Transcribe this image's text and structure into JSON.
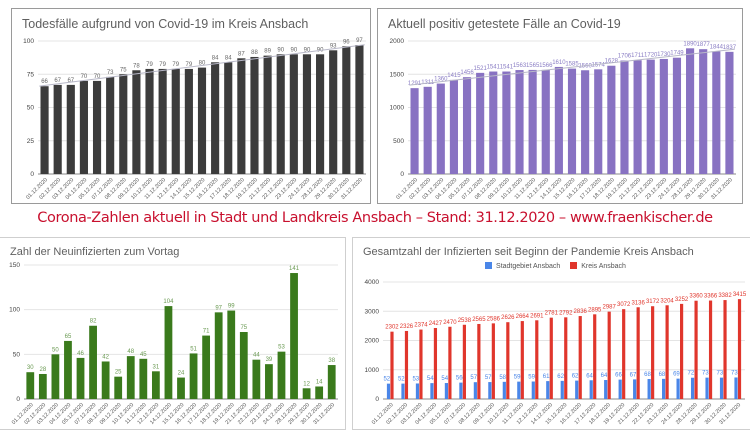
{
  "banner": "Corona-Zahlen aktuell in Stadt und Landkreis Ansbach – Stand: 31.12.2020 – www.fraenkischer.de",
  "chart_data": [
    {
      "id": "deaths",
      "type": "bar",
      "title": "Todesfälle aufgrund von Covid-19 im Kreis Ansbach",
      "xlabel": "",
      "ylabel": "",
      "ylim": [
        0,
        100
      ],
      "yticks": [
        0,
        25,
        50,
        75,
        100
      ],
      "grid": true,
      "trendline": true,
      "categories": [
        "01.12.2020",
        "02.12.2020",
        "03.12.2020",
        "04.12.2020",
        "05.12.2020",
        "07.12.2020",
        "08.12.2020",
        "09.12.2020",
        "10.12.2020",
        "11.12.2020",
        "12.12.2020",
        "14.12.2020",
        "15.12.2020",
        "16.12.2020",
        "17.12.2020",
        "18.12.2020",
        "19.12.2020",
        "21.12.2020",
        "22.12.2020",
        "23.12.2020",
        "24.12.2020",
        "28.12.2020",
        "29.12.2020",
        "30.12.2020",
        "31.12.2020"
      ],
      "series": [
        {
          "name": "Todesfälle",
          "color": "#3c3c3c",
          "label_color": "#666666",
          "values": [
            66,
            67,
            67,
            70,
            70,
            73,
            75,
            78,
            79,
            79,
            79,
            79,
            80,
            84,
            84,
            87,
            88,
            89,
            90,
            90,
            90,
            90,
            93,
            96,
            97
          ]
        }
      ]
    },
    {
      "id": "active",
      "type": "bar",
      "title": "Aktuell positiv getestete Fälle an Covid-19",
      "xlabel": "",
      "ylabel": "",
      "ylim": [
        0,
        2000
      ],
      "yticks": [
        0,
        500,
        1000,
        1500,
        2000
      ],
      "grid": true,
      "trendline": true,
      "categories": [
        "01.12.2020",
        "02.12.2020",
        "03.12.2020",
        "04.12.2020",
        "05.12.2020",
        "07.12.2020",
        "08.12.2020",
        "09.12.2020",
        "10.12.2020",
        "11.12.2020",
        "12.12.2020",
        "14.12.2020",
        "15.12.2020",
        "16.12.2020",
        "17.12.2020",
        "18.12.2020",
        "19.12.2020",
        "21.12.2020",
        "22.12.2020",
        "23.12.2020",
        "24.12.2020",
        "28.12.2020",
        "29.12.2020",
        "30.12.2020",
        "31.12.2020"
      ],
      "series": [
        {
          "name": "Aktuell positiv",
          "color": "#8872c2",
          "label_color": "#8a7dc4",
          "values": [
            1291,
            1311,
            1360,
            1415,
            1456,
            1521,
            1541,
            1541,
            1563,
            1565,
            1566,
            1610,
            1585,
            1560,
            1574,
            1628,
            1706,
            1711,
            1720,
            1730,
            1749,
            1890,
            1877,
            1844,
            1837
          ]
        }
      ]
    },
    {
      "id": "new",
      "type": "bar",
      "title": "Zahl der Neuinfizierten zum Vortag",
      "xlabel": "",
      "ylabel": "",
      "ylim": [
        0,
        150
      ],
      "yticks": [
        0,
        50,
        100,
        150
      ],
      "grid": true,
      "trendline": false,
      "categories": [
        "01.12.2020",
        "02.12.2020",
        "03.12.2020",
        "04.12.2020",
        "05.12.2020",
        "07.12.2020",
        "08.12.2020",
        "09.12.2020",
        "10.12.2020",
        "11.12.2020",
        "12.12.2020",
        "14.12.2020",
        "15.12.2020",
        "16.12.2020",
        "17.12.2020",
        "18.12.2020",
        "19.12.2020",
        "21.12.2020",
        "22.12.2020",
        "23.12.2020",
        "24.12.2020",
        "28.12.2020",
        "29.12.2020",
        "30.12.2020",
        "31.12.2020"
      ],
      "series": [
        {
          "name": "Neuinfizierte",
          "color": "#3a7a1c",
          "label_color": "#6a9a52",
          "values": [
            30,
            28,
            50,
            65,
            46,
            82,
            42,
            25,
            48,
            45,
            31,
            104,
            24,
            51,
            71,
            97,
            99,
            75,
            44,
            39,
            53,
            141,
            12,
            14,
            38
          ]
        }
      ]
    },
    {
      "id": "total",
      "type": "bar",
      "title": "Gesamtzahl der Infizierten seit Beginn der Pandemie Kreis Ansbach",
      "xlabel": "",
      "ylabel": "",
      "ylim": [
        0,
        4000
      ],
      "yticks": [
        0,
        1000,
        2000,
        3000,
        4000
      ],
      "grid": true,
      "trendline": false,
      "legend": "top-center",
      "categories": [
        "01.12.2020",
        "02.12.2020",
        "03.12.2020",
        "04.12.2020",
        "05.12.2020",
        "07.12.2020",
        "08.12.2020",
        "09.12.2020",
        "10.12.2020",
        "11.12.2020",
        "12.12.2020",
        "14.12.2020",
        "15.12.2020",
        "16.12.2020",
        "17.12.2020",
        "18.12.2020",
        "19.12.2020",
        "21.12.2020",
        "22.12.2020",
        "23.12.2020",
        "24.12.2020",
        "28.12.2020",
        "29.12.2020",
        "30.12.2020",
        "31.12.2020"
      ],
      "series": [
        {
          "name": "Stadtgebiet Ansbach",
          "color": "#4a86e8",
          "label_color": "#4a86e8",
          "values": [
            525,
            526,
            531,
            543,
            546,
            560,
            575,
            579,
            587,
            594,
            598,
            612,
            620,
            629,
            640,
            649,
            663,
            671,
            683,
            689,
            696,
            727,
            731,
            731,
            736
          ]
        },
        {
          "name": "Kreis Ansbach",
          "color": "#e0362c",
          "label_color": "#e0362c",
          "values": [
            2302,
            2326,
            2374,
            2427,
            2470,
            2538,
            2565,
            2586,
            2626,
            2664,
            2691,
            2781,
            2792,
            2836,
            2895,
            2987,
            3072,
            3136,
            3172,
            3204,
            3252,
            3360,
            3366,
            3382,
            3415
          ]
        }
      ]
    }
  ]
}
